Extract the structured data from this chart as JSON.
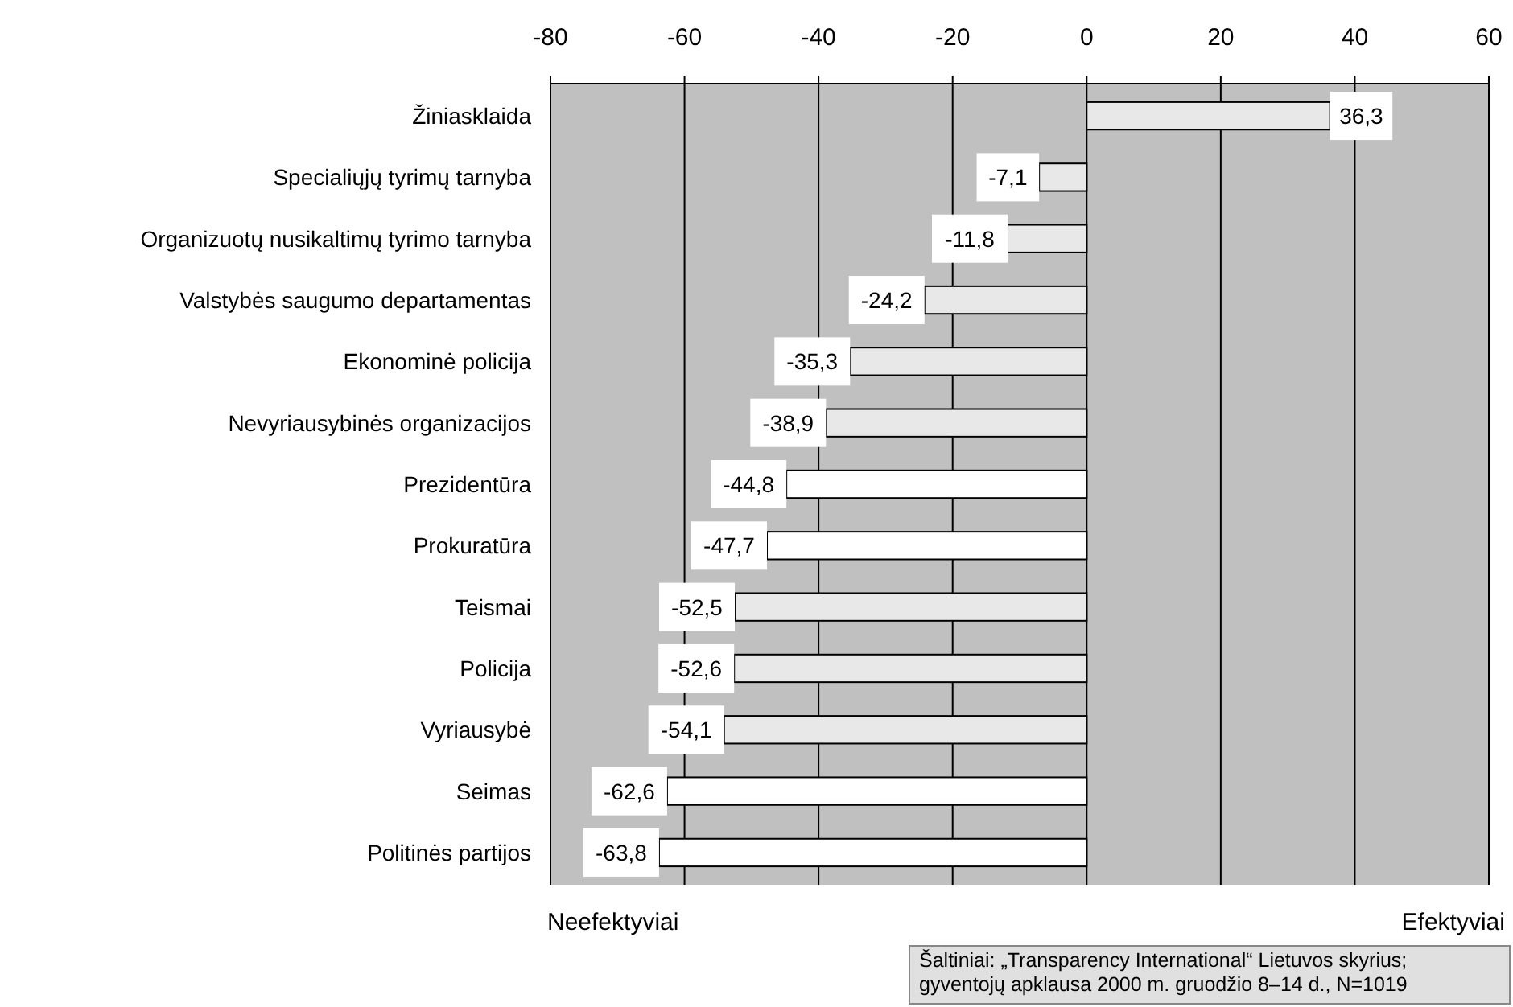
{
  "chart_data": {
    "type": "bar",
    "orientation": "horizontal",
    "categories": [
      "Žiniasklaida",
      "Specialiųjų tyrimų tarnyba",
      "Organizuotų nusikaltimų tyrimo tarnyba",
      "Valstybės saugumo departamentas",
      "Ekonominė policija",
      "Nevyriausybinės organizacijos",
      "Prezidentūra",
      "Prokuratūra",
      "Teismai",
      "Policija",
      "Vyriausybė",
      "Seimas",
      "Politinės partijos"
    ],
    "values": [
      36.3,
      -7.1,
      -11.8,
      -24.2,
      -35.3,
      -38.9,
      -44.8,
      -47.7,
      -52.5,
      -52.6,
      -54.1,
      -62.6,
      -63.8
    ],
    "colors": [
      "#e8e8e8",
      "#e8e8e8",
      "#e8e8e8",
      "#e8e8e8",
      "#e8e8e8",
      "#e8e8e8",
      "#ffffff",
      "#ffffff",
      "#e8e8e8",
      "#e8e8e8",
      "#e8e8e8",
      "#ffffff",
      "#ffffff"
    ],
    "value_labels": [
      "36,3",
      "-7,1",
      "-11,8",
      "-24,2",
      "-35,3",
      "-38,9",
      "-44,8",
      "-47,7",
      "-52,5",
      "-52,6",
      "-54,1",
      "-62,6",
      "-63,8"
    ],
    "xlim": [
      -80,
      60
    ],
    "xticks": [
      -80,
      -60,
      -40,
      -20,
      0,
      20,
      40,
      60
    ],
    "grid": "x",
    "annotations": [
      "Neefektyviai",
      "Efektyviai",
      "Šaltiniai: „Transparency International“ Lietuvos skyrius; gyventojų apklausa 2000 m. gruodžio 8–14 d., N=1019"
    ]
  }
}
